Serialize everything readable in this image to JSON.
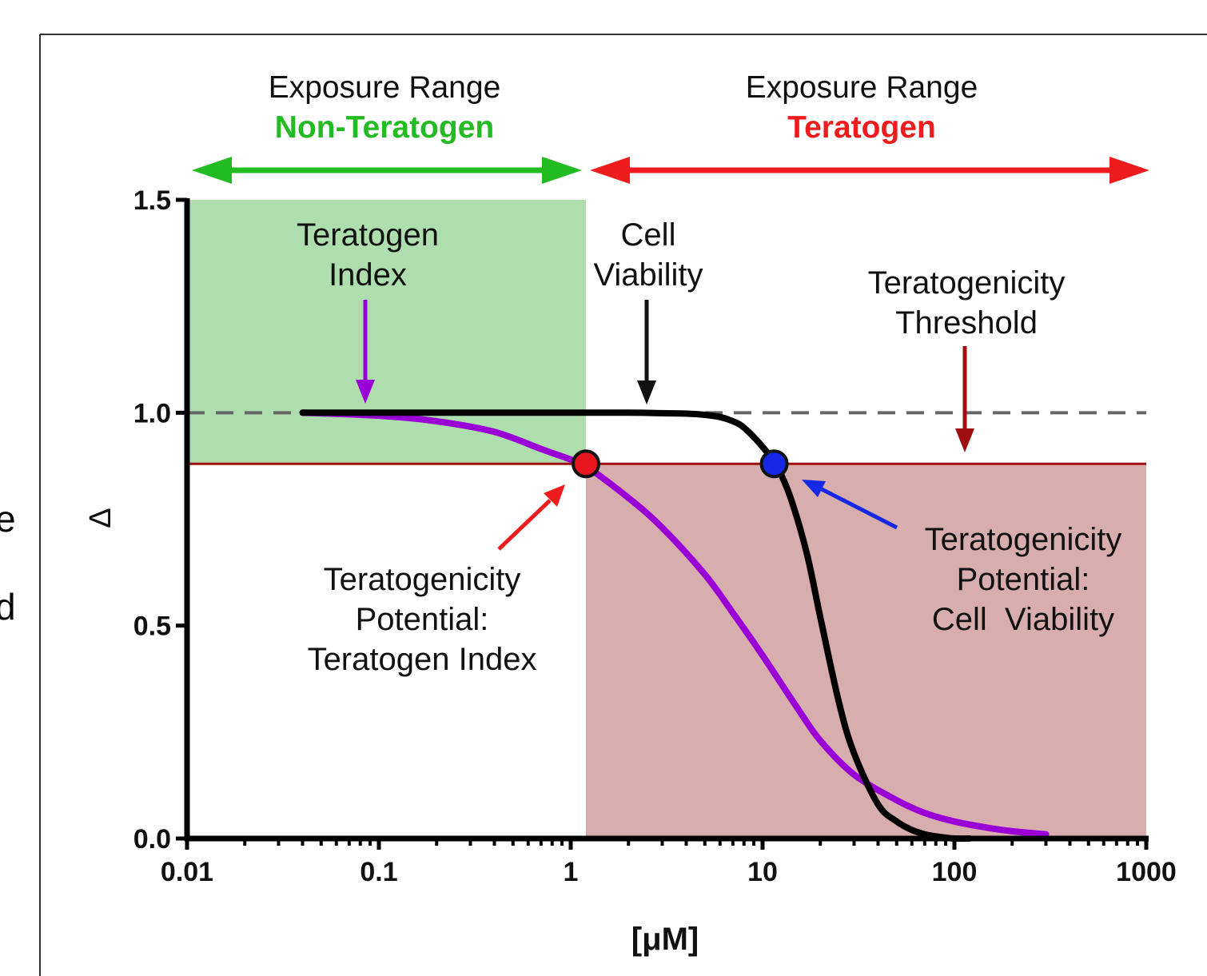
{
  "left_edge_text": [
    "e",
    "d"
  ],
  "chart_data": {
    "type": "line",
    "xscale": "log",
    "xlim": [
      0.01,
      1000
    ],
    "ylim": [
      0,
      1.5
    ],
    "xlabel": "[μM]",
    "ylabel": "Δ",
    "x_ticks": [
      "0.01",
      "0.1",
      "1",
      "10",
      "100",
      "1000"
    ],
    "x_tick_values": [
      0.01,
      0.1,
      1,
      10,
      100,
      1000
    ],
    "y_ticks": [
      "0.0",
      "0.5",
      "1.0",
      "1.5"
    ],
    "y_tick_values": [
      0,
      0.5,
      1.0,
      1.5
    ],
    "reference_line": 1.0,
    "threshold": 0.88,
    "threshold_x": 1.2,
    "series": [
      {
        "color": "#9a00d6",
        "x": [
          0.04,
          0.1,
          0.2,
          0.4,
          0.7,
          1.0,
          1.2,
          2,
          3,
          5,
          7,
          10,
          15,
          20,
          30,
          50,
          70,
          100,
          150,
          200,
          300
        ],
        "y": [
          1.0,
          0.993,
          0.98,
          0.955,
          0.915,
          0.89,
          0.875,
          0.8,
          0.73,
          0.62,
          0.53,
          0.43,
          0.31,
          0.23,
          0.15,
          0.09,
          0.06,
          0.04,
          0.025,
          0.017,
          0.01
        ]
      },
      {
        "color": "#000000",
        "x": [
          0.04,
          0.1,
          0.5,
          1,
          2,
          3,
          4,
          5,
          6,
          7,
          8,
          10,
          12,
          14,
          17,
          20,
          25,
          30,
          40,
          50,
          60,
          70,
          80,
          100,
          120
        ],
        "y": [
          1.0,
          1.0,
          1.0,
          1.0,
          1.0,
          0.999,
          0.998,
          0.995,
          0.99,
          0.98,
          0.965,
          0.92,
          0.87,
          0.8,
          0.67,
          0.52,
          0.32,
          0.2,
          0.08,
          0.04,
          0.02,
          0.01,
          0.005,
          0.0,
          0.0
        ]
      }
    ],
    "points": [
      {
        "x": 1.2,
        "y": 0.88,
        "color": "#e8141e"
      },
      {
        "x": 11.5,
        "y": 0.88,
        "color": "#1428e6"
      }
    ],
    "regions": {
      "non_teratogen_color": "#aedead",
      "teratogen_color": "#d8adad",
      "threshold_line_color": "#9e1010"
    },
    "header": {
      "left": {
        "line1": "Exposure Range",
        "line2": "Non-Teratogen",
        "color": "#22bb22"
      },
      "right": {
        "line1": "Exposure Range",
        "line2": "Teratogen",
        "color": "#ee1c1c"
      }
    },
    "annotations": {
      "teratogen_index": [
        "Teratogen",
        "Index"
      ],
      "cell_viability": [
        "Cell",
        "Viability"
      ],
      "threshold": [
        "Teratogenicity",
        "Threshold"
      ],
      "potential_ti": [
        "Teratogenicity",
        "Potential:",
        "Teratogen Index"
      ],
      "potential_cv": [
        "Teratogenicity",
        "Potential:",
        "Cell  Viability"
      ]
    }
  }
}
